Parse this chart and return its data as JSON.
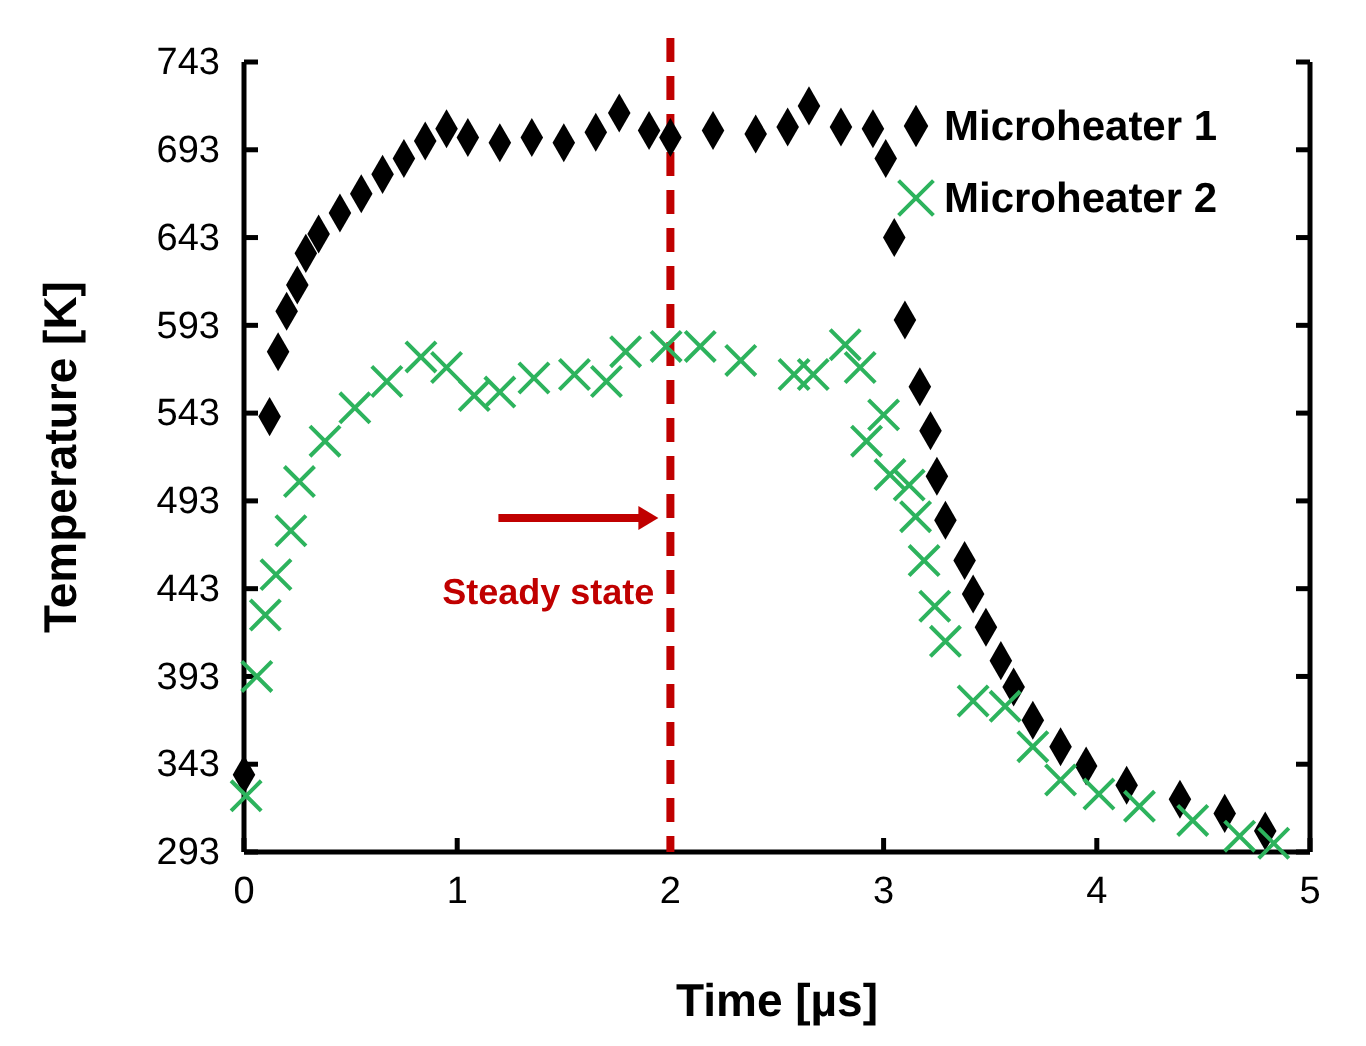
{
  "chart_data": {
    "type": "scatter",
    "xlabel": "Time [µs]",
    "ylabel": "Temperature  [K]",
    "xlim": [
      0,
      5
    ],
    "xticks": [
      0,
      1,
      2,
      3,
      4,
      5
    ],
    "ylim": [
      293,
      743
    ],
    "yticks": [
      293,
      343,
      393,
      443,
      493,
      543,
      593,
      643,
      693,
      743
    ],
    "grid": false,
    "legend": "top right",
    "series": [
      {
        "name": "Microheater 1",
        "color": "#000000",
        "marker": "diamond",
        "x": [
          0,
          0.12,
          0.16,
          0.2,
          0.25,
          0.29,
          0.35,
          0.45,
          0.55,
          0.65,
          0.75,
          0.85,
          0.95,
          1.05,
          1.2,
          1.35,
          1.5,
          1.65,
          1.76,
          1.9,
          2.0,
          2.2,
          2.4,
          2.55,
          2.65,
          2.8,
          2.95,
          3.01,
          3.05,
          3.1,
          3.17,
          3.22,
          3.25,
          3.29,
          3.38,
          3.42,
          3.48,
          3.55,
          3.61,
          3.7,
          3.83,
          3.95,
          4.14,
          4.39,
          4.6,
          4.79
        ],
        "values": [
          337,
          541,
          578,
          601,
          616,
          634,
          645,
          657,
          668,
          679,
          688,
          698,
          705,
          700,
          697,
          700,
          697,
          703,
          714,
          704,
          700,
          704,
          702,
          706,
          718,
          706,
          705,
          688,
          643,
          596,
          558,
          533,
          507,
          482,
          459,
          440,
          421,
          402,
          387,
          368,
          353,
          342,
          331,
          323,
          315,
          305
        ]
      },
      {
        "name": "Microheater 2",
        "color": "#2db35d",
        "marker": "cross",
        "x": [
          0.01,
          0.06,
          0.1,
          0.15,
          0.22,
          0.26,
          0.38,
          0.52,
          0.67,
          0.83,
          0.95,
          1.08,
          1.2,
          1.36,
          1.55,
          1.7,
          1.79,
          1.98,
          2.14,
          2.33,
          2.58,
          2.67,
          2.82,
          2.89,
          2.92,
          3.0,
          3.03,
          3.12,
          3.15,
          3.19,
          3.24,
          3.29,
          3.42,
          3.57,
          3.7,
          3.83,
          4.01,
          4.2,
          4.45,
          4.67,
          4.83
        ],
        "values": [
          325,
          393,
          428,
          451,
          476,
          504,
          527,
          546,
          561,
          575,
          569,
          553,
          555,
          563,
          565,
          561,
          578,
          581,
          581,
          573,
          565,
          565,
          582,
          569,
          527,
          542,
          508,
          502,
          484,
          459,
          433,
          413,
          379,
          376,
          353,
          334,
          326,
          319,
          311,
          302,
          298
        ]
      }
    ],
    "ref_lines": [
      {
        "axis": "x",
        "value": 2,
        "label": "Steady state",
        "color": "#c00000",
        "line_style": "dashed"
      }
    ]
  }
}
